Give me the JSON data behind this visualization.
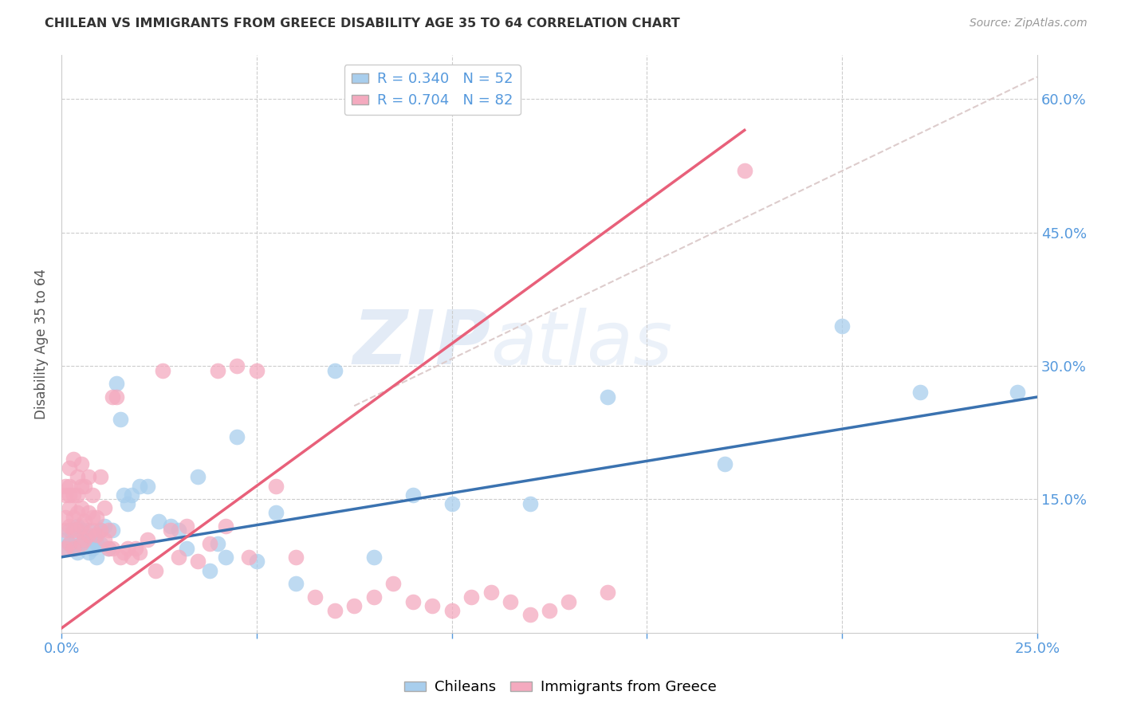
{
  "title": "CHILEAN VS IMMIGRANTS FROM GREECE DISABILITY AGE 35 TO 64 CORRELATION CHART",
  "source": "Source: ZipAtlas.com",
  "ylabel": "Disability Age 35 to 64",
  "xlim": [
    0.0,
    0.25
  ],
  "ylim": [
    0.0,
    0.65
  ],
  "yticks": [
    0.0,
    0.15,
    0.3,
    0.45,
    0.6
  ],
  "ytick_labels": [
    "",
    "15.0%",
    "30.0%",
    "45.0%",
    "60.0%"
  ],
  "xticks": [
    0.0,
    0.05,
    0.1,
    0.15,
    0.2,
    0.25
  ],
  "xtick_labels": [
    "0.0%",
    "",
    "",
    "",
    "",
    "25.0%"
  ],
  "watermark_zip": "ZIP",
  "watermark_atlas": "atlas",
  "color_blue": "#A8CEED",
  "color_pink": "#F4AABF",
  "line_blue": "#3A72B0",
  "line_pink": "#E8607A",
  "line_dashed": "#DDCCCC",
  "R_blue": 0.34,
  "N_blue": 52,
  "R_pink": 0.704,
  "N_pink": 82,
  "blue_trend": [
    0.0,
    0.085,
    0.25,
    0.265
  ],
  "pink_trend": [
    0.0,
    0.005,
    0.175,
    0.565
  ],
  "dashed_trend": [
    0.075,
    0.255,
    0.25,
    0.625
  ],
  "chilean_x": [
    0.001,
    0.001,
    0.002,
    0.002,
    0.003,
    0.003,
    0.004,
    0.004,
    0.005,
    0.005,
    0.006,
    0.006,
    0.007,
    0.007,
    0.008,
    0.008,
    0.009,
    0.009,
    0.01,
    0.01,
    0.011,
    0.012,
    0.013,
    0.014,
    0.015,
    0.016,
    0.017,
    0.018,
    0.02,
    0.022,
    0.025,
    0.028,
    0.03,
    0.032,
    0.035,
    0.038,
    0.04,
    0.042,
    0.045,
    0.05,
    0.055,
    0.06,
    0.07,
    0.08,
    0.09,
    0.1,
    0.12,
    0.14,
    0.17,
    0.2,
    0.22,
    0.245
  ],
  "chilean_y": [
    0.095,
    0.105,
    0.1,
    0.115,
    0.095,
    0.11,
    0.09,
    0.12,
    0.1,
    0.115,
    0.105,
    0.11,
    0.09,
    0.115,
    0.095,
    0.105,
    0.1,
    0.085,
    0.1,
    0.115,
    0.12,
    0.095,
    0.115,
    0.28,
    0.24,
    0.155,
    0.145,
    0.155,
    0.165,
    0.165,
    0.125,
    0.12,
    0.115,
    0.095,
    0.175,
    0.07,
    0.1,
    0.085,
    0.22,
    0.08,
    0.135,
    0.055,
    0.295,
    0.085,
    0.155,
    0.145,
    0.145,
    0.265,
    0.19,
    0.345,
    0.27,
    0.27
  ],
  "greece_x": [
    0.001,
    0.001,
    0.001,
    0.001,
    0.001,
    0.002,
    0.002,
    0.002,
    0.002,
    0.002,
    0.002,
    0.003,
    0.003,
    0.003,
    0.003,
    0.003,
    0.004,
    0.004,
    0.004,
    0.004,
    0.005,
    0.005,
    0.005,
    0.005,
    0.005,
    0.006,
    0.006,
    0.006,
    0.007,
    0.007,
    0.007,
    0.008,
    0.008,
    0.008,
    0.009,
    0.009,
    0.01,
    0.01,
    0.011,
    0.011,
    0.012,
    0.012,
    0.013,
    0.013,
    0.014,
    0.015,
    0.016,
    0.017,
    0.018,
    0.019,
    0.02,
    0.022,
    0.024,
    0.026,
    0.028,
    0.03,
    0.032,
    0.035,
    0.038,
    0.04,
    0.042,
    0.045,
    0.048,
    0.05,
    0.055,
    0.06,
    0.065,
    0.07,
    0.075,
    0.08,
    0.085,
    0.09,
    0.095,
    0.1,
    0.105,
    0.11,
    0.115,
    0.12,
    0.125,
    0.13,
    0.14,
    0.175
  ],
  "greece_y": [
    0.095,
    0.115,
    0.13,
    0.155,
    0.165,
    0.1,
    0.12,
    0.14,
    0.155,
    0.165,
    0.185,
    0.095,
    0.115,
    0.13,
    0.155,
    0.195,
    0.115,
    0.135,
    0.155,
    0.175,
    0.1,
    0.12,
    0.14,
    0.165,
    0.19,
    0.105,
    0.125,
    0.165,
    0.11,
    0.135,
    0.175,
    0.115,
    0.13,
    0.155,
    0.11,
    0.13,
    0.115,
    0.175,
    0.105,
    0.14,
    0.095,
    0.115,
    0.095,
    0.265,
    0.265,
    0.085,
    0.09,
    0.095,
    0.085,
    0.095,
    0.09,
    0.105,
    0.07,
    0.295,
    0.115,
    0.085,
    0.12,
    0.08,
    0.1,
    0.295,
    0.12,
    0.3,
    0.085,
    0.295,
    0.165,
    0.085,
    0.04,
    0.025,
    0.03,
    0.04,
    0.055,
    0.035,
    0.03,
    0.025,
    0.04,
    0.045,
    0.035,
    0.02,
    0.025,
    0.035,
    0.045,
    0.52
  ]
}
